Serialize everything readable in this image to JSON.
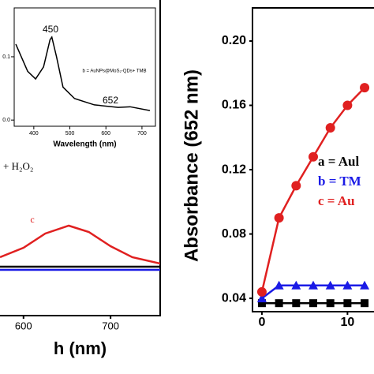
{
  "chart_data": [
    {
      "type": "line",
      "xlabel": "Wavelength (nm)",
      "x": [
        350,
        383,
        405,
        427,
        445,
        450,
        463,
        481,
        513,
        568,
        634,
        667,
        722
      ],
      "series": [
        {
          "color": "#000000",
          "values": [
            0.12,
            0.077,
            0.065,
            0.084,
            0.127,
            0.131,
            0.1,
            0.052,
            0.034,
            0.024,
            0.02,
            0.021,
            0.015
          ]
        }
      ],
      "xlim": [
        350,
        733
      ],
      "ylim": [
        -0.016,
        0.171
      ],
      "xticks": [
        400,
        500,
        600,
        700
      ],
      "yticks": [
        {
          "value": 0,
          "label": "0.0"
        },
        0.1
      ],
      "annotations": [
        "450",
        "652",
        "b = AuNPs@MoS₂-QDs+ TMB"
      ]
    },
    {
      "type": "line",
      "xlabel": "h (nm)",
      "x": [
        573,
        600,
        625,
        652,
        675,
        700,
        725,
        757
      ],
      "series": [
        {
          "color": "#000000",
          "values": [
            0.31,
            0.31,
            0.31,
            0.31,
            0.31,
            0.31,
            0.31,
            0.31
          ]
        },
        {
          "color": "#1a1ae6",
          "values": [
            0.29,
            0.29,
            0.29,
            0.29,
            0.29,
            0.29,
            0.29,
            0.29
          ]
        },
        {
          "color": "#e02020",
          "values": [
            0.37,
            0.43,
            0.52,
            0.57,
            0.53,
            0.44,
            0.37,
            0.33
          ]
        }
      ],
      "xlim": [
        573,
        757
      ],
      "ylim": [
        0,
        1
      ],
      "xticks": [
        600,
        700
      ],
      "annotations": [
        "+ H₂O₂",
        "c"
      ]
    },
    {
      "type": "line",
      "ylabel": "Absorbance (652 nm)",
      "x": [
        0,
        2,
        4,
        6,
        8,
        10,
        12
      ],
      "series": [
        {
          "name": "a = Aul",
          "color": "#000000",
          "marker": "square",
          "values": [
            0.037,
            0.037,
            0.037,
            0.037,
            0.037,
            0.037,
            0.037
          ]
        },
        {
          "name": "b =  TM",
          "color": "#1a1ae6",
          "marker": "triangle",
          "values": [
            0.04,
            0.048,
            0.048,
            0.048,
            0.048,
            0.048,
            0.048
          ]
        },
        {
          "name": "c =  Au",
          "color": "#e02020",
          "marker": "circle",
          "values": [
            0.044,
            0.09,
            0.11,
            0.128,
            0.146,
            0.16,
            0.171
          ]
        }
      ],
      "xlim": [
        -1.1,
        13.1
      ],
      "ylim": [
        0.0317,
        0.2206
      ],
      "xticks": [
        0,
        10
      ],
      "yticks": [
        0.04,
        0.08,
        0.12,
        0.16,
        {
          "value": 0.2,
          "label": "0.20"
        }
      ]
    }
  ]
}
